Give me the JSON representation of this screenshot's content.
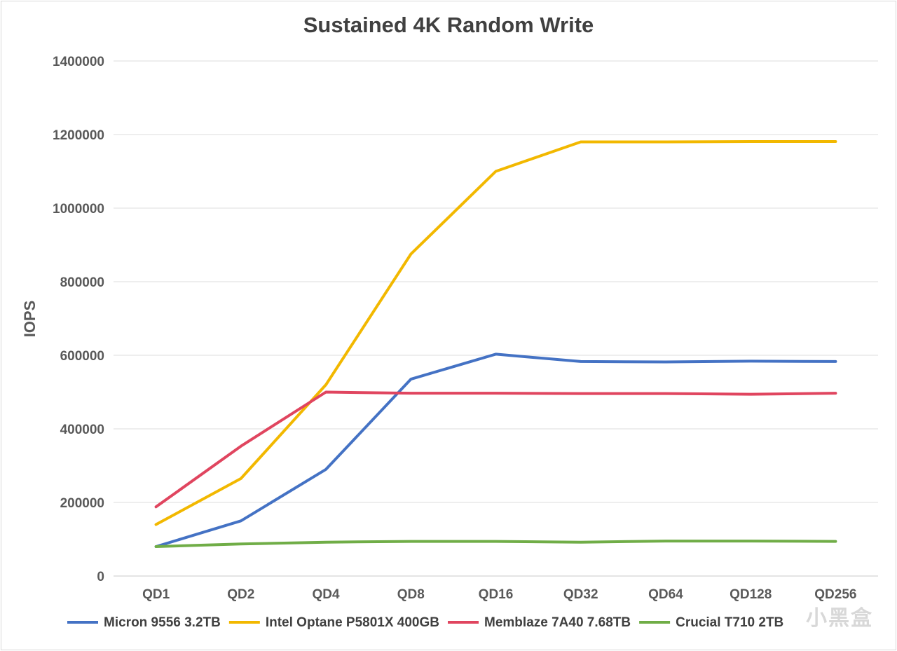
{
  "chart_data": {
    "type": "line",
    "title": "Sustained 4K Random Write",
    "ylabel": "IOPS",
    "xlabel": "",
    "ylim": [
      0,
      1400000
    ],
    "yticks": [
      0,
      200000,
      400000,
      600000,
      800000,
      1000000,
      1200000,
      1400000
    ],
    "ytick_labels": [
      "0",
      "200000",
      "400000",
      "600000",
      "800000",
      "1000000",
      "1200000",
      "1400000"
    ],
    "categories": [
      "QD1",
      "QD2",
      "QD4",
      "QD8",
      "QD16",
      "QD32",
      "QD64",
      "QD128",
      "QD256"
    ],
    "grid": true,
    "legend_position": "bottom",
    "series": [
      {
        "name": "Micron 9556 3.2TB",
        "color": "#4472C4",
        "values": [
          80000,
          150000,
          290000,
          535000,
          603000,
          583000,
          582000,
          584000,
          583000
        ]
      },
      {
        "name": "Intel Optane P5801X 400GB",
        "color": "#F2B800",
        "values": [
          140000,
          265000,
          520000,
          875000,
          1100000,
          1180000,
          1180000,
          1181000,
          1181000
        ]
      },
      {
        "name": "Memblaze 7A40 7.68TB",
        "color": "#E0455F",
        "values": [
          188000,
          353000,
          500000,
          497000,
          497000,
          496000,
          496000,
          494000,
          497000
        ]
      },
      {
        "name": "Crucial T710 2TB",
        "color": "#70AD47",
        "values": [
          80000,
          87000,
          92000,
          94000,
          94000,
          92000,
          95000,
          95000,
          94000
        ]
      }
    ]
  },
  "watermark": {
    "text": "小黑盒"
  }
}
